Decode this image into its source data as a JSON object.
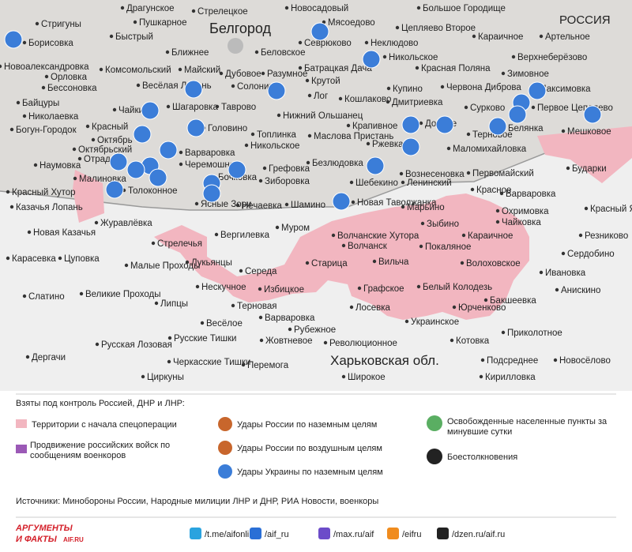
{
  "map": {
    "country_label": "РОССИЯ",
    "city_label": "Белгород",
    "region_label": "Харьковская обл.",
    "places": [
      "Драгунское",
      "Стрелецкое",
      "Новосадовый",
      "Большое Городище",
      "Стригуны",
      "Пушкарное",
      "Мясоедово",
      "Цепляево Второе",
      "Караичное",
      "Артельное",
      "Борисовка",
      "Быстрый",
      "Севрюково",
      "Неклюдово",
      "Ближнее",
      "Беловское",
      "Никольское",
      "Верхнеберёзово",
      "Новоалександровка",
      "Комсомольский",
      "Майский",
      "Дубовое",
      "Разумное",
      "Батрацкая Дача",
      "Красная Поляна",
      "Зимовное",
      "Орловка",
      "Весёлая Лопань",
      "Солонино",
      "Крутой",
      "Бессоновка",
      "Купино",
      "Червона Диброва",
      "Максимовка",
      "Байцуры",
      "Чайки",
      "Шагаровка",
      "Таврово",
      "Лог",
      "Кошлаково",
      "Дмитриевка",
      "Сурково",
      "Первое Цепляево",
      "Николаевка",
      "Нижний Ольшанец",
      "Богун-Городок",
      "Красный",
      "Головино",
      "Крапивное",
      "Доброе",
      "Терновое",
      "Белянка",
      "Мешковое",
      "Октябрь",
      "Топлинка",
      "Маслова Пристань",
      "Ржевка",
      "Маломихайловка",
      "Октябрьский",
      "Никольское",
      "Отрадное",
      "Варваровка",
      "Наумовка",
      "Малиновка",
      "Черемошное",
      "Грефовка",
      "Безлюдовка",
      "Вознесеновка",
      "Первомайский",
      "Бударки",
      "Бочковка",
      "Шебекино",
      "Ленинский",
      "Толоконное",
      "Зиборовка",
      "Красное",
      "Варваровка",
      "Красный Хутор",
      "Ясные Зори",
      "Нечаевка",
      "Шамино",
      "Новая Таволжанка",
      "Казачья Лопань",
      "Марьино",
      "Охримовка",
      "Красный Яр",
      "Журавлёвка",
      "Вергилевка",
      "Зыбино",
      "Чайковка",
      "Муром",
      "Волчанские Хутора",
      "Караичное",
      "Резниково",
      "Новая Казачья",
      "Стрелечья",
      "Волчанск",
      "Покаляное",
      "Сердобино",
      "Карасевка",
      "Цуповка",
      "Малые Проходы",
      "Лукьянцы",
      "Старица",
      "Вильча",
      "Волоховское",
      "Середа",
      "Нескучное",
      "Графское",
      "Белый Колодезь",
      "Ивановка",
      "Анискино",
      "Великие Проходы",
      "Слатино",
      "Избицкое",
      "Бакшеевка",
      "Липцы",
      "Терновая",
      "Лосевка",
      "Юрченково",
      "Варваровка",
      "Весёлое",
      "Рубежное",
      "Украинское",
      "Приколотное",
      "Русские Тишки",
      "Русская Лозовая",
      "Жовтневое",
      "Революционное",
      "Котовка",
      "Черкасские Тишки",
      "Подсреднее",
      "Новосёлово",
      "Дергачи",
      "Перемога",
      "Циркуны",
      "Широкое",
      "Кирилловка"
    ]
  },
  "legend": {
    "title": "Взяты под контроль Россией, ДНР и ЛНР:",
    "items": [
      "Территории с начала спецоперации",
      "Продвижение российских войск по сообщениям военкоров",
      "Удары России по наземным целям",
      "Удары России по воздушным целям",
      "Удары Украины по наземным целям",
      "Освобожденные населенные пункты за минувшие сутки",
      "Боестолкновения"
    ]
  },
  "sources": "Источники: Минобороны России, Народные милиции ЛНР и ДНР, РИА Новости, военкоры",
  "footer": {
    "logo_top": "АРГУМЕНТЫ",
    "logo_bottom": "И ФАКТЫ",
    "logo_site": "AIF.RU",
    "links": [
      "/t.me/aifonline",
      "/aif_ru",
      "/max.ru/aif",
      "/eifru",
      "/dzen.ru/aif.ru"
    ]
  }
}
